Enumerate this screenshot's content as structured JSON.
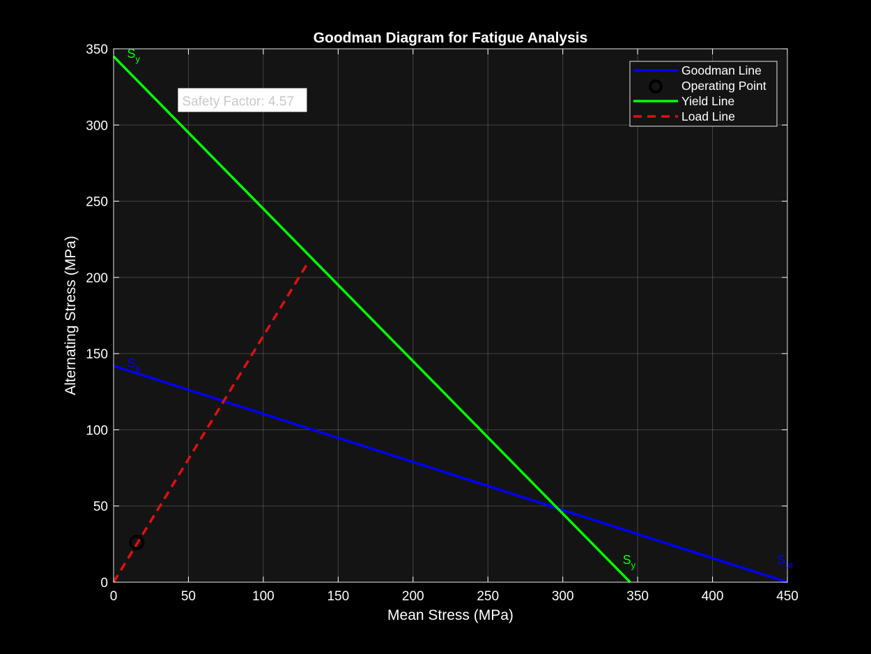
{
  "chart_data": {
    "type": "line",
    "title": "Goodman Diagram for Fatigue Analysis",
    "xlabel": "Mean Stress (MPa)",
    "ylabel": "Alternating Stress (MPa)",
    "xlim": [
      0,
      450
    ],
    "ylim": [
      0,
      350
    ],
    "xticks": [
      0,
      50,
      100,
      150,
      200,
      250,
      300,
      350,
      400,
      450
    ],
    "yticks": [
      0,
      50,
      100,
      150,
      200,
      250,
      300,
      350
    ],
    "grid": true,
    "legend_position": "top-right",
    "background_color": "#141414",
    "figure_color": "#000000",
    "series": [
      {
        "name": "Goodman Line",
        "color": "#0000ff",
        "style": "solid",
        "x": [
          0,
          450
        ],
        "y": [
          142,
          0
        ]
      },
      {
        "name": "Operating Point",
        "color": "#000000",
        "style": "marker-circle",
        "x": [
          15.5
        ],
        "y": [
          26
        ]
      },
      {
        "name": "Yield Line",
        "color": "#00ff00",
        "style": "solid",
        "x": [
          0,
          345
        ],
        "y": [
          345,
          0
        ]
      },
      {
        "name": "Load Line",
        "color": "#e01010",
        "style": "dashed",
        "x": [
          0,
          130
        ],
        "y": [
          0,
          210
        ]
      }
    ],
    "annotations": [
      {
        "main": "S",
        "sub": "y",
        "x": 9,
        "y": 344,
        "color": "#00ff00"
      },
      {
        "main": "S",
        "sub": "e",
        "x": 9,
        "y": 141,
        "color": "#0000ff"
      },
      {
        "main": "S",
        "sub": "y",
        "x": 340,
        "y": 12,
        "color": "#00ff00"
      },
      {
        "main": "S",
        "sub": "ut",
        "x": 443,
        "y": 12,
        "color": "#0000ff"
      }
    ],
    "textbox": {
      "text": "Safety Factor: 4.57",
      "x": 43,
      "y": 315
    }
  }
}
